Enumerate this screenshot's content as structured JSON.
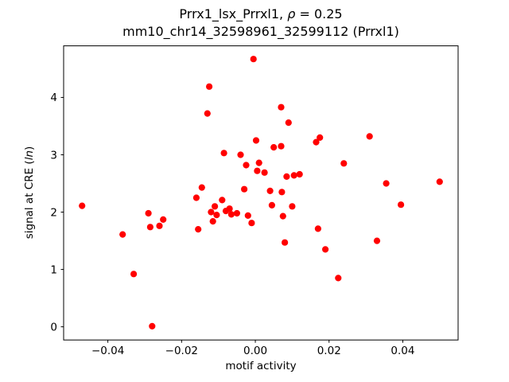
{
  "chart_data": {
    "type": "scatter",
    "title": "Prrx1_lsx_Prrxl1, ρ = 0.25",
    "title_parts": {
      "prefix": "Prrx1_lsx_Prrxl1, ",
      "math": "ρ",
      "suffix": " = 0.25"
    },
    "subtitle": "mm10_chr14_32598961_32599112 (Prrxl1)",
    "xlabel": "motif activity",
    "ylabel": "signal at CRE (ln)",
    "ylabel_parts": {
      "prefix": "signal at CRE (",
      "italic": "ln",
      "suffix": ")"
    },
    "xlim": [
      -0.052,
      0.055
    ],
    "ylim": [
      -0.23,
      4.9
    ],
    "xticks": {
      "values": [
        -0.04,
        -0.02,
        0.0,
        0.02,
        0.04
      ],
      "labels": [
        "−0.04",
        "−0.02",
        "0.00",
        "0.02",
        "0.04"
      ]
    },
    "yticks": {
      "values": [
        0,
        1,
        2,
        3,
        4
      ],
      "labels": [
        "0",
        "1",
        "2",
        "3",
        "4"
      ]
    },
    "grid": false,
    "point_color": "#ff0000",
    "marker": "circle",
    "marker_radius_px": 4.1,
    "points": [
      [
        -0.047,
        2.11
      ],
      [
        -0.036,
        1.61
      ],
      [
        -0.033,
        0.92
      ],
      [
        -0.029,
        1.98
      ],
      [
        -0.0285,
        1.74
      ],
      [
        -0.028,
        0.01
      ],
      [
        -0.026,
        1.76
      ],
      [
        -0.025,
        1.87
      ],
      [
        -0.016,
        2.25
      ],
      [
        -0.0155,
        1.7
      ],
      [
        -0.0145,
        2.43
      ],
      [
        -0.013,
        3.72
      ],
      [
        -0.0125,
        4.19
      ],
      [
        -0.012,
        2.0
      ],
      [
        -0.0115,
        1.84
      ],
      [
        -0.011,
        2.1
      ],
      [
        -0.0105,
        1.95
      ],
      [
        -0.009,
        2.21
      ],
      [
        -0.0085,
        3.03
      ],
      [
        -0.008,
        2.02
      ],
      [
        -0.007,
        2.06
      ],
      [
        -0.0065,
        1.96
      ],
      [
        -0.005,
        1.98
      ],
      [
        -0.004,
        3.0
      ],
      [
        -0.003,
        2.4
      ],
      [
        -0.0025,
        2.82
      ],
      [
        -0.002,
        1.94
      ],
      [
        -0.001,
        1.81
      ],
      [
        -0.0005,
        4.67
      ],
      [
        0.0002,
        3.25
      ],
      [
        0.0005,
        2.72
      ],
      [
        0.001,
        2.86
      ],
      [
        0.0025,
        2.69
      ],
      [
        0.004,
        2.37
      ],
      [
        0.0045,
        2.12
      ],
      [
        0.005,
        3.13
      ],
      [
        0.007,
        3.83
      ],
      [
        0.007,
        3.15
      ],
      [
        0.0072,
        2.35
      ],
      [
        0.0075,
        1.93
      ],
      [
        0.008,
        1.47
      ],
      [
        0.0085,
        2.62
      ],
      [
        0.009,
        3.56
      ],
      [
        0.01,
        2.1
      ],
      [
        0.0105,
        2.64
      ],
      [
        0.012,
        2.66
      ],
      [
        0.0165,
        3.22
      ],
      [
        0.0175,
        3.3
      ],
      [
        0.017,
        1.71
      ],
      [
        0.019,
        1.35
      ],
      [
        0.0225,
        0.85
      ],
      [
        0.024,
        2.85
      ],
      [
        0.031,
        3.32
      ],
      [
        0.033,
        1.5
      ],
      [
        0.0355,
        2.5
      ],
      [
        0.0395,
        2.13
      ],
      [
        0.05,
        2.53
      ]
    ]
  }
}
